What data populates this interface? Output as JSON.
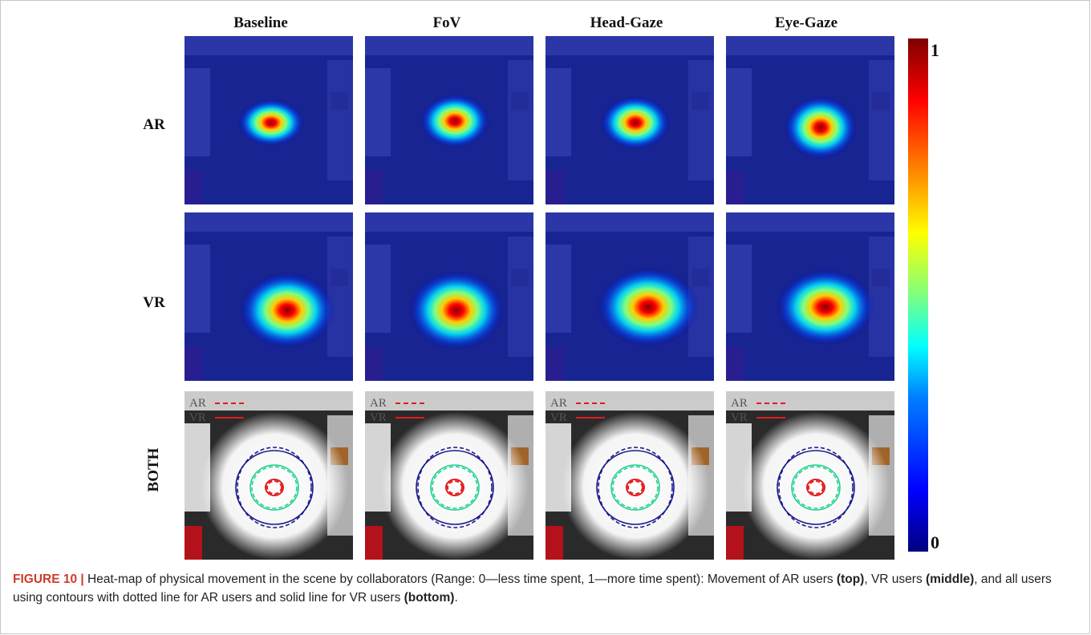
{
  "columns": [
    "Baseline",
    "FoV",
    "Head-Gaze",
    "Eye-Gaze"
  ],
  "rows": [
    "AR",
    "VR",
    "BOTH"
  ],
  "legend": {
    "ar": "AR",
    "vr": "VR"
  },
  "colorbar": {
    "max_label": "1",
    "min_label": "0"
  },
  "caption": {
    "figure_label": "FIGURE 10 |",
    "text_1": " Heat-map of physical movement in the scene by collaborators (Range: 0—less time spent, 1—more time spent): Movement of AR users ",
    "top": "(top)",
    "text_2": ", VR users ",
    "middle": "(middle)",
    "text_3": ", and all users using contours with dotted line for AR users and solid line for VR users ",
    "bottom": "(bottom)",
    "text_4": "."
  },
  "colors": {
    "colormap_low": "#00007f",
    "colormap_high": "#7f0000",
    "caption_label": "#d03a2a",
    "contour_red": "#e31a1c",
    "contour_green": "#1fd28c",
    "contour_blue": "#1a1a8c"
  }
}
